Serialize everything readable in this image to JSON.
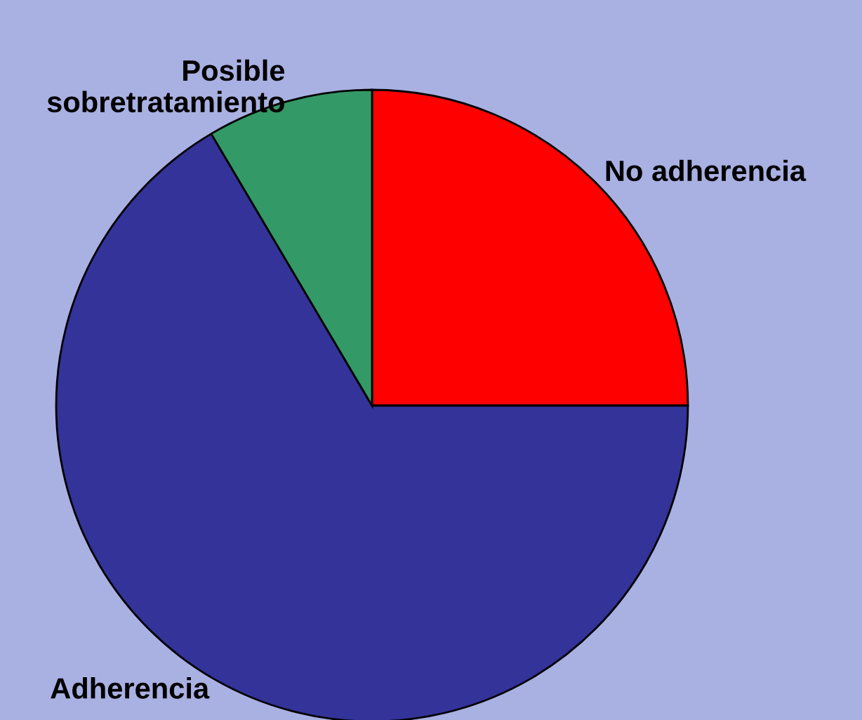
{
  "chart_data": {
    "type": "pie",
    "categories": [
      "No adherencia",
      "Adherencia",
      "Posible sobretratamiento"
    ],
    "values": [
      25,
      66.5,
      8.5
    ],
    "colors": [
      "#ff0000",
      "#333399",
      "#339966"
    ]
  }
}
